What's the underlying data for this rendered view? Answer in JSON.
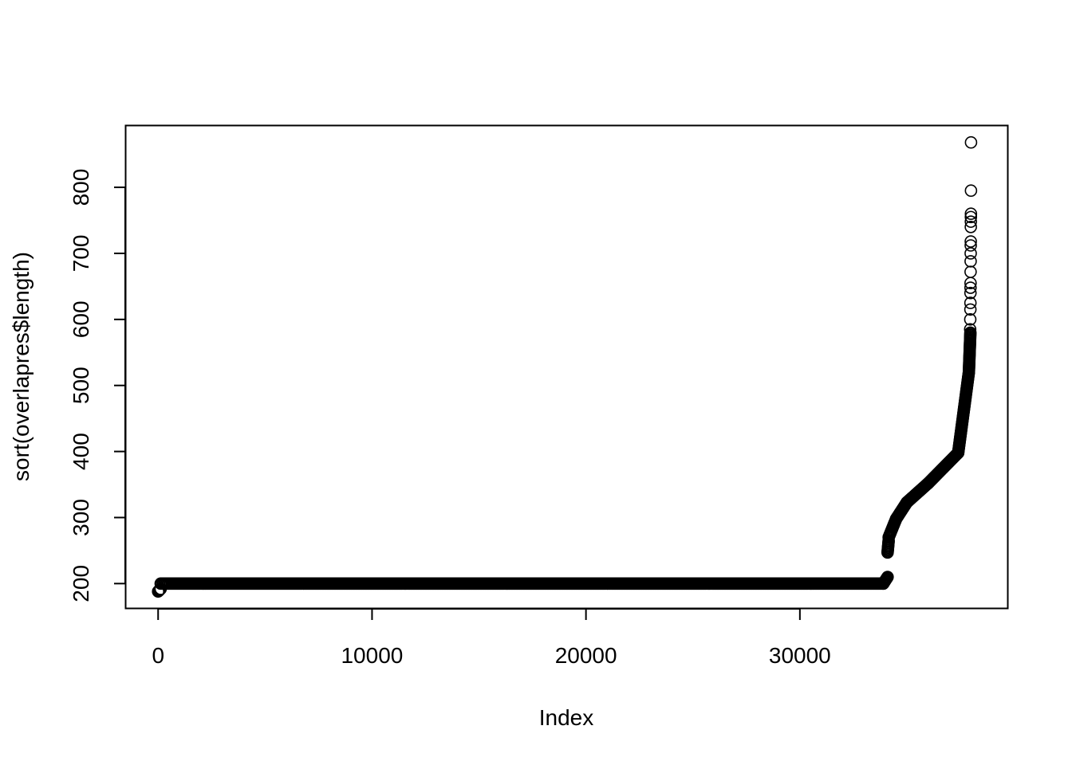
{
  "chart_data": {
    "type": "scatter",
    "title": "",
    "xlabel": "Index",
    "ylabel": "sort(overlapres$length)",
    "xlim": [
      -1500,
      39700
    ],
    "ylim": [
      163,
      893
    ],
    "xticks": [
      0,
      10000,
      20000,
      30000
    ],
    "yticks": [
      200,
      300,
      400,
      500,
      600,
      700,
      800
    ],
    "xtick_labels": [
      "0",
      "10000",
      "20000",
      "30000"
    ],
    "ytick_labels": [
      "200",
      "300",
      "400",
      "500",
      "600",
      "700",
      "800"
    ],
    "grid": false,
    "legend": "none",
    "marker": "open-circle",
    "color": "#000000",
    "n_points_approx": 38000,
    "series": [
      {
        "segments": [
          {
            "x_from": 0,
            "x_to": 120,
            "y_from": 188,
            "y_to": 192
          },
          {
            "x_from": 120,
            "x_to": 33900,
            "y_from": 200,
            "y_to": 200
          },
          {
            "x_from": 33900,
            "x_to": 34100,
            "y_from": 200,
            "y_to": 210
          },
          {
            "x_from": 34100,
            "x_to": 34150,
            "y_from": 247,
            "y_to": 265
          },
          {
            "x_from": 34150,
            "x_to": 34500,
            "y_from": 270,
            "y_to": 298
          },
          {
            "x_from": 34500,
            "x_to": 35000,
            "y_from": 298,
            "y_to": 323
          },
          {
            "x_from": 35000,
            "x_to": 36000,
            "y_from": 323,
            "y_to": 352
          },
          {
            "x_from": 36000,
            "x_to": 37400,
            "y_from": 352,
            "y_to": 398
          },
          {
            "x_from": 37400,
            "x_to": 37900,
            "y_from": 398,
            "y_to": 520
          },
          {
            "x_from": 37900,
            "x_to": 37970,
            "y_from": 520,
            "y_to": 580
          }
        ],
        "outliers": [
          {
            "x": 37960,
            "y": 585
          },
          {
            "x": 37965,
            "y": 600
          },
          {
            "x": 37970,
            "y": 615
          },
          {
            "x": 37972,
            "y": 625
          },
          {
            "x": 37974,
            "y": 640
          },
          {
            "x": 37976,
            "y": 648
          },
          {
            "x": 37978,
            "y": 655
          },
          {
            "x": 37980,
            "y": 672
          },
          {
            "x": 37982,
            "y": 688
          },
          {
            "x": 37984,
            "y": 700
          },
          {
            "x": 37986,
            "y": 712
          },
          {
            "x": 37988,
            "y": 718
          },
          {
            "x": 37990,
            "y": 740
          },
          {
            "x": 37992,
            "y": 748
          },
          {
            "x": 37994,
            "y": 755
          },
          {
            "x": 37996,
            "y": 760
          },
          {
            "x": 37998,
            "y": 795
          },
          {
            "x": 38000,
            "y": 868
          }
        ]
      }
    ]
  }
}
